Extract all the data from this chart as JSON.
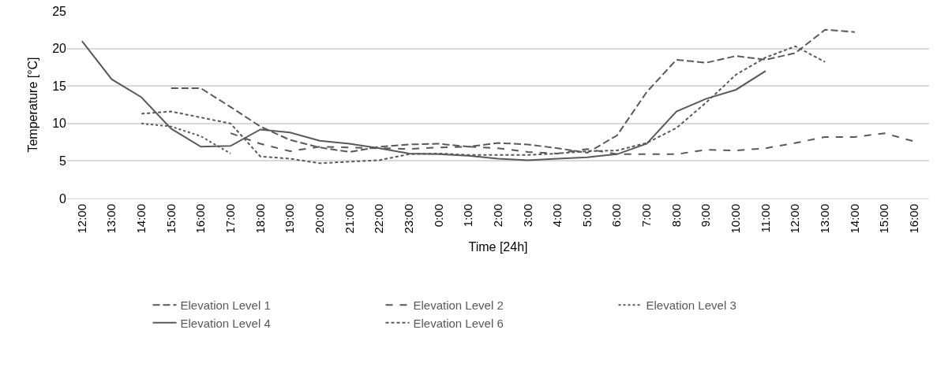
{
  "chart_data": {
    "type": "line",
    "xlabel": "Time [24h]",
    "ylabel": "Temperature [°C]",
    "categories": [
      "12:00",
      "13:00",
      "14:00",
      "15:00",
      "16:00",
      "17:00",
      "18:00",
      "19:00",
      "20:00",
      "21:00",
      "22:00",
      "23:00",
      "0:00",
      "1:00",
      "2:00",
      "3:00",
      "4:00",
      "5:00",
      "6:00",
      "7:00",
      "8:00",
      "9:00",
      "10:00",
      "11:00",
      "12:00",
      "13:00",
      "14:00",
      "15:00",
      "16:00"
    ],
    "ylim": [
      0,
      25
    ],
    "yticks": [
      0,
      5,
      10,
      15,
      20,
      25
    ],
    "grid": "y",
    "legend": "bottom",
    "marker": "none",
    "series": [
      {
        "name": "Elevation Level 1",
        "color": "#595959",
        "line_style": "long dashed",
        "values": [
          null,
          null,
          null,
          14.7,
          14.7,
          12.2,
          9.6,
          7.8,
          6.8,
          6.2,
          6.9,
          7.2,
          7.3,
          6.9,
          7.4,
          7.2,
          6.7,
          6.1,
          8.4,
          14.2,
          18.5,
          18.1,
          19.0,
          18.5,
          19.4,
          22.5,
          22.2,
          null,
          null
        ]
      },
      {
        "name": "Elevation Level 2",
        "color": "#595959",
        "line_style": "dashed",
        "values": [
          null,
          null,
          null,
          null,
          null,
          8.7,
          7.3,
          6.3,
          6.9,
          6.8,
          6.7,
          6.6,
          6.8,
          6.9,
          6.7,
          6.2,
          6.0,
          6.6,
          5.9,
          5.9,
          5.9,
          6.5,
          6.4,
          6.7,
          7.4,
          8.2,
          8.2,
          8.7,
          7.6
        ]
      },
      {
        "name": "Elevation Level 3",
        "color": "#595959",
        "line_style": "dotted",
        "values": [
          null,
          null,
          10.0,
          9.6,
          8.3,
          6.0,
          null,
          null,
          null,
          null,
          null,
          null,
          null,
          null,
          null,
          null,
          null,
          null,
          null,
          null,
          null,
          null,
          null,
          null,
          null,
          null,
          null,
          null,
          null
        ]
      },
      {
        "name": "Elevation Level 4",
        "color": "#595959",
        "line_style": "solid",
        "values": [
          21.0,
          15.9,
          13.5,
          9.3,
          6.9,
          7.0,
          9.2,
          8.8,
          7.7,
          7.3,
          6.7,
          6.0,
          5.9,
          5.7,
          5.3,
          5.1,
          5.3,
          5.5,
          5.9,
          7.3,
          11.6,
          13.3,
          14.5,
          17.0,
          null,
          null,
          null,
          null,
          null
        ]
      },
      {
        "name": "Elevation Level 6",
        "color": "#595959",
        "line_style": "fine dashed",
        "values": [
          null,
          null,
          11.3,
          11.6,
          10.8,
          10.0,
          5.6,
          5.3,
          4.7,
          4.9,
          5.1,
          5.9,
          6.0,
          5.8,
          5.8,
          5.8,
          6.0,
          6.3,
          6.4,
          7.4,
          9.4,
          12.8,
          16.5,
          18.8,
          20.3,
          18.2,
          null,
          null,
          null
        ]
      }
    ]
  }
}
